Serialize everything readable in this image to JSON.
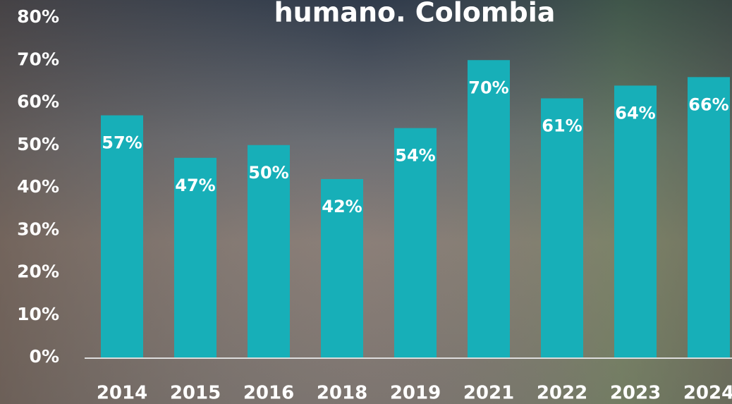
{
  "chart_data": {
    "type": "bar",
    "title": "humano. Colombia",
    "categories": [
      "2014",
      "2015",
      "2016",
      "2018",
      "2019",
      "2021",
      "2022",
      "2023",
      "2024"
    ],
    "values": [
      57,
      47,
      50,
      42,
      54,
      70,
      61,
      64,
      66
    ],
    "value_labels": [
      "57%",
      "47%",
      "50%",
      "42%",
      "54%",
      "70%",
      "61%",
      "64%",
      "66%"
    ],
    "color": "#17afb8",
    "ylim": [
      0,
      80
    ],
    "yticks": [
      {
        "value": 0,
        "label": "0%"
      },
      {
        "value": 10,
        "label": "10%"
      },
      {
        "value": 20,
        "label": "20%"
      },
      {
        "value": 30,
        "label": "30%"
      },
      {
        "value": 40,
        "label": "40%"
      },
      {
        "value": 50,
        "label": "50%"
      },
      {
        "value": 60,
        "label": "60%"
      },
      {
        "value": 70,
        "label": "70%"
      },
      {
        "value": 80,
        "label": "80%"
      }
    ]
  }
}
